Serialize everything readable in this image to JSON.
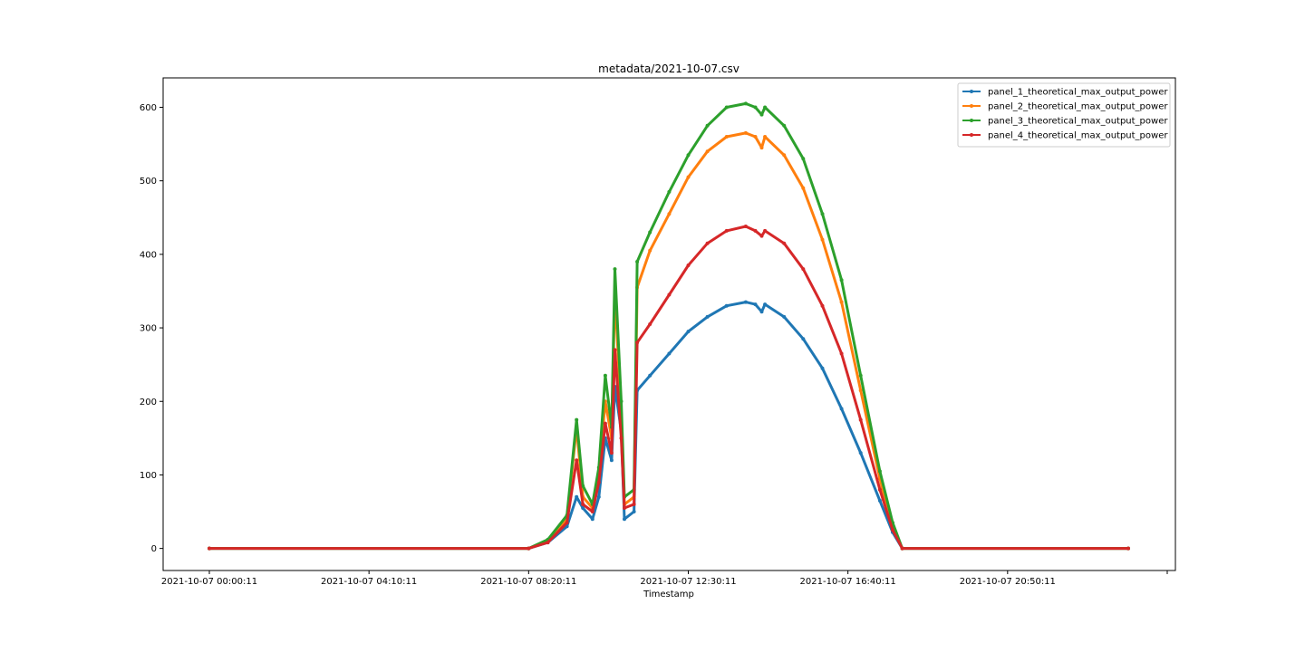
{
  "chart_data": {
    "type": "line",
    "title": "metadata/2021-10-07.csv",
    "xlabel": "Timestamp",
    "ylabel": "",
    "x_start": "2021-10-07 00:00:11",
    "x_end": "2021-10-07 23:59:11",
    "xlim": [
      "2021-10-07 00:00:11",
      "2021-10-08 01:30:11"
    ],
    "ylim": [
      -30,
      640
    ],
    "x_tick_labels": [
      "2021-10-07 00:00:11",
      "2021-10-07 04:10:11",
      "2021-10-07 08:20:11",
      "2021-10-07 12:30:11",
      "2021-10-07 16:40:11",
      "2021-10-07 20:50:11"
    ],
    "y_ticks": [
      0,
      100,
      200,
      300,
      400,
      500,
      600
    ],
    "grid": false,
    "legend_position": "top-right",
    "marker": "dot",
    "series": [
      {
        "name": "panel_1_theoretical_max_output_power",
        "color": "#1f77b4",
        "points": [
          [
            "2021-10-07 00:00:11",
            0
          ],
          [
            "2021-10-07 08:20:11",
            0
          ],
          [
            "2021-10-07 08:50:11",
            8
          ],
          [
            "2021-10-07 09:20:11",
            30
          ],
          [
            "2021-10-07 09:35:11",
            70
          ],
          [
            "2021-10-07 09:45:11",
            55
          ],
          [
            "2021-10-07 10:00:11",
            40
          ],
          [
            "2021-10-07 10:10:11",
            70
          ],
          [
            "2021-10-07 10:20:11",
            150
          ],
          [
            "2021-10-07 10:30:11",
            120
          ],
          [
            "2021-10-07 10:35:11",
            220
          ],
          [
            "2021-10-07 10:45:11",
            160
          ],
          [
            "2021-10-07 10:50:11",
            40
          ],
          [
            "2021-10-07 11:05:11",
            50
          ],
          [
            "2021-10-07 11:10:11",
            215
          ],
          [
            "2021-10-07 11:30:11",
            235
          ],
          [
            "2021-10-07 12:00:11",
            265
          ],
          [
            "2021-10-07 12:30:11",
            295
          ],
          [
            "2021-10-07 13:00:11",
            315
          ],
          [
            "2021-10-07 13:30:11",
            330
          ],
          [
            "2021-10-07 14:00:11",
            335
          ],
          [
            "2021-10-07 14:15:11",
            332
          ],
          [
            "2021-10-07 14:25:11",
            322
          ],
          [
            "2021-10-07 14:30:11",
            332
          ],
          [
            "2021-10-07 15:00:11",
            315
          ],
          [
            "2021-10-07 15:30:11",
            285
          ],
          [
            "2021-10-07 16:00:11",
            245
          ],
          [
            "2021-10-07 16:30:11",
            190
          ],
          [
            "2021-10-07 17:00:11",
            130
          ],
          [
            "2021-10-07 17:30:11",
            65
          ],
          [
            "2021-10-07 17:50:11",
            22
          ],
          [
            "2021-10-07 18:05:11",
            0
          ],
          [
            "2021-10-07 23:59:11",
            0
          ]
        ]
      },
      {
        "name": "panel_2_theoretical_max_output_power",
        "color": "#ff7f0e",
        "points": [
          [
            "2021-10-07 00:00:11",
            0
          ],
          [
            "2021-10-07 08:20:11",
            0
          ],
          [
            "2021-10-07 08:50:11",
            10
          ],
          [
            "2021-10-07 09:20:11",
            40
          ],
          [
            "2021-10-07 09:35:11",
            165
          ],
          [
            "2021-10-07 09:45:11",
            70
          ],
          [
            "2021-10-07 10:00:11",
            55
          ],
          [
            "2021-10-07 10:10:11",
            100
          ],
          [
            "2021-10-07 10:20:11",
            200
          ],
          [
            "2021-10-07 10:30:11",
            150
          ],
          [
            "2021-10-07 10:35:11",
            350
          ],
          [
            "2021-10-07 10:45:11",
            180
          ],
          [
            "2021-10-07 10:50:11",
            60
          ],
          [
            "2021-10-07 11:05:11",
            70
          ],
          [
            "2021-10-07 11:10:11",
            355
          ],
          [
            "2021-10-07 11:30:11",
            405
          ],
          [
            "2021-10-07 12:00:11",
            455
          ],
          [
            "2021-10-07 12:30:11",
            505
          ],
          [
            "2021-10-07 13:00:11",
            540
          ],
          [
            "2021-10-07 13:30:11",
            560
          ],
          [
            "2021-10-07 14:00:11",
            565
          ],
          [
            "2021-10-07 14:15:11",
            560
          ],
          [
            "2021-10-07 14:25:11",
            545
          ],
          [
            "2021-10-07 14:30:11",
            560
          ],
          [
            "2021-10-07 15:00:11",
            535
          ],
          [
            "2021-10-07 15:30:11",
            490
          ],
          [
            "2021-10-07 16:00:11",
            420
          ],
          [
            "2021-10-07 16:30:11",
            335
          ],
          [
            "2021-10-07 17:00:11",
            215
          ],
          [
            "2021-10-07 17:30:11",
            95
          ],
          [
            "2021-10-07 17:50:11",
            28
          ],
          [
            "2021-10-07 18:05:11",
            0
          ],
          [
            "2021-10-07 23:59:11",
            0
          ]
        ]
      },
      {
        "name": "panel_3_theoretical_max_output_power",
        "color": "#2ca02c",
        "points": [
          [
            "2021-10-07 00:00:11",
            0
          ],
          [
            "2021-10-07 08:20:11",
            0
          ],
          [
            "2021-10-07 08:50:11",
            12
          ],
          [
            "2021-10-07 09:20:11",
            45
          ],
          [
            "2021-10-07 09:35:11",
            175
          ],
          [
            "2021-10-07 09:45:11",
            85
          ],
          [
            "2021-10-07 10:00:11",
            60
          ],
          [
            "2021-10-07 10:10:11",
            110
          ],
          [
            "2021-10-07 10:20:11",
            235
          ],
          [
            "2021-10-07 10:30:11",
            165
          ],
          [
            "2021-10-07 10:35:11",
            380
          ],
          [
            "2021-10-07 10:45:11",
            200
          ],
          [
            "2021-10-07 10:50:11",
            70
          ],
          [
            "2021-10-07 11:05:11",
            80
          ],
          [
            "2021-10-07 11:10:11",
            390
          ],
          [
            "2021-10-07 11:30:11",
            430
          ],
          [
            "2021-10-07 12:00:11",
            485
          ],
          [
            "2021-10-07 12:30:11",
            535
          ],
          [
            "2021-10-07 13:00:11",
            575
          ],
          [
            "2021-10-07 13:30:11",
            600
          ],
          [
            "2021-10-07 14:00:11",
            605
          ],
          [
            "2021-10-07 14:15:11",
            600
          ],
          [
            "2021-10-07 14:25:11",
            590
          ],
          [
            "2021-10-07 14:30:11",
            600
          ],
          [
            "2021-10-07 15:00:11",
            575
          ],
          [
            "2021-10-07 15:30:11",
            530
          ],
          [
            "2021-10-07 16:00:11",
            455
          ],
          [
            "2021-10-07 16:30:11",
            365
          ],
          [
            "2021-10-07 17:00:11",
            235
          ],
          [
            "2021-10-07 17:30:11",
            105
          ],
          [
            "2021-10-07 17:50:11",
            35
          ],
          [
            "2021-10-07 18:05:11",
            0
          ],
          [
            "2021-10-07 23:59:11",
            0
          ]
        ]
      },
      {
        "name": "panel_4_theoretical_max_output_power",
        "color": "#d62728",
        "points": [
          [
            "2021-10-07 00:00:11",
            0
          ],
          [
            "2021-10-07 08:20:11",
            0
          ],
          [
            "2021-10-07 08:50:11",
            8
          ],
          [
            "2021-10-07 09:20:11",
            35
          ],
          [
            "2021-10-07 09:35:11",
            120
          ],
          [
            "2021-10-07 09:45:11",
            60
          ],
          [
            "2021-10-07 10:00:11",
            50
          ],
          [
            "2021-10-07 10:10:11",
            90
          ],
          [
            "2021-10-07 10:20:11",
            170
          ],
          [
            "2021-10-07 10:30:11",
            130
          ],
          [
            "2021-10-07 10:35:11",
            270
          ],
          [
            "2021-10-07 10:45:11",
            150
          ],
          [
            "2021-10-07 10:50:11",
            55
          ],
          [
            "2021-10-07 11:05:11",
            60
          ],
          [
            "2021-10-07 11:10:11",
            280
          ],
          [
            "2021-10-07 11:30:11",
            305
          ],
          [
            "2021-10-07 12:00:11",
            345
          ],
          [
            "2021-10-07 12:30:11",
            385
          ],
          [
            "2021-10-07 13:00:11",
            415
          ],
          [
            "2021-10-07 13:30:11",
            432
          ],
          [
            "2021-10-07 14:00:11",
            438
          ],
          [
            "2021-10-07 14:15:11",
            432
          ],
          [
            "2021-10-07 14:25:11",
            425
          ],
          [
            "2021-10-07 14:30:11",
            432
          ],
          [
            "2021-10-07 15:00:11",
            415
          ],
          [
            "2021-10-07 15:30:11",
            380
          ],
          [
            "2021-10-07 16:00:11",
            330
          ],
          [
            "2021-10-07 16:30:11",
            265
          ],
          [
            "2021-10-07 17:00:11",
            175
          ],
          [
            "2021-10-07 17:30:11",
            80
          ],
          [
            "2021-10-07 17:50:11",
            25
          ],
          [
            "2021-10-07 18:05:11",
            0
          ],
          [
            "2021-10-07 23:59:11",
            0
          ]
        ]
      }
    ]
  }
}
